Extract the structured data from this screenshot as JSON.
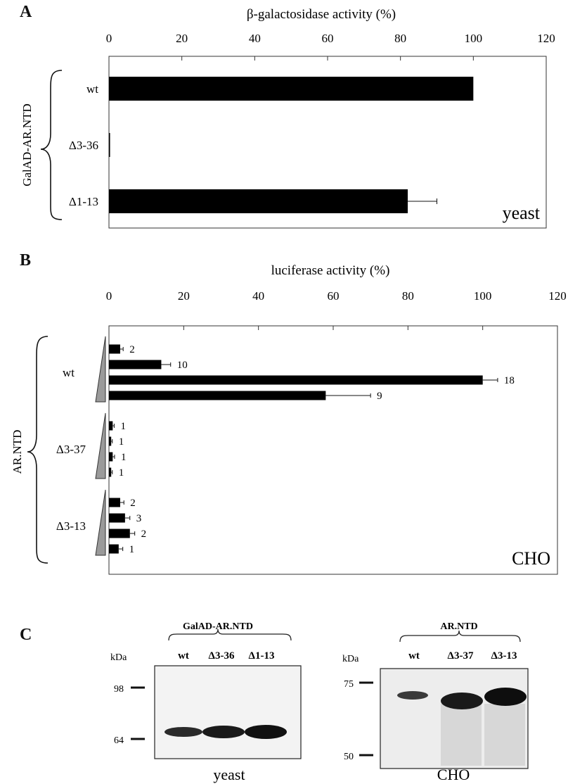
{
  "panels": {
    "a_label": "A",
    "b_label": "B",
    "c_label": "C"
  },
  "chart_data": [
    {
      "type": "bar",
      "orientation": "horizontal",
      "panel": "A",
      "xlabel": "β-galactosidase activity (%)",
      "group_label": "GalAD-AR.NTD",
      "xlim": [
        0,
        120
      ],
      "x_ticks": [
        "0",
        "20",
        "40",
        "60",
        "80",
        "100",
        "120"
      ],
      "categories": [
        "wt",
        "Δ3-36",
        "Δ1-13"
      ],
      "values": [
        100,
        0.3,
        82
      ],
      "errors": [
        0,
        0.3,
        8
      ],
      "annotation": "yeast",
      "bar_color": "#000000"
    },
    {
      "type": "bar",
      "orientation": "horizontal",
      "panel": "B",
      "xlabel": "luciferase activity (%)",
      "group_label": "AR.NTD",
      "xlim": [
        0,
        120
      ],
      "x_ticks": [
        "0",
        "20",
        "40",
        "60",
        "80",
        "100",
        "120"
      ],
      "annotation": "CHO",
      "bar_color": "#000000",
      "groups": [
        {
          "name": "wt",
          "values": [
            3,
            14,
            100,
            58
          ],
          "errors": [
            0.8,
            2.5,
            4,
            12
          ],
          "counts": [
            "2",
            "10",
            "18",
            "9"
          ]
        },
        {
          "name": "Δ3-37",
          "values": [
            1,
            0.6,
            1,
            0.6
          ],
          "errors": [
            0.4,
            0.3,
            0.5,
            0.3
          ],
          "counts": [
            "1",
            "1",
            "1",
            "1"
          ]
        },
        {
          "name": "Δ3-13",
          "values": [
            3,
            4.3,
            5.6,
            2.6
          ],
          "errors": [
            1,
            1.3,
            1.3,
            1.1
          ],
          "counts": [
            "2",
            "3",
            "2",
            "1"
          ]
        }
      ]
    }
  ],
  "blots": {
    "yeast": {
      "title": "GalAD-AR.NTD",
      "kda": "kDa",
      "lanes": [
        "wt",
        "Δ3-36",
        "Δ1-13"
      ],
      "markers": [
        "98",
        "64"
      ],
      "caption": "yeast"
    },
    "cho": {
      "title": "AR.NTD",
      "kda": "kDa",
      "lanes": [
        "wt",
        "Δ3-37",
        "Δ3-13"
      ],
      "markers": [
        "75",
        "50"
      ],
      "caption": "CHO"
    }
  }
}
